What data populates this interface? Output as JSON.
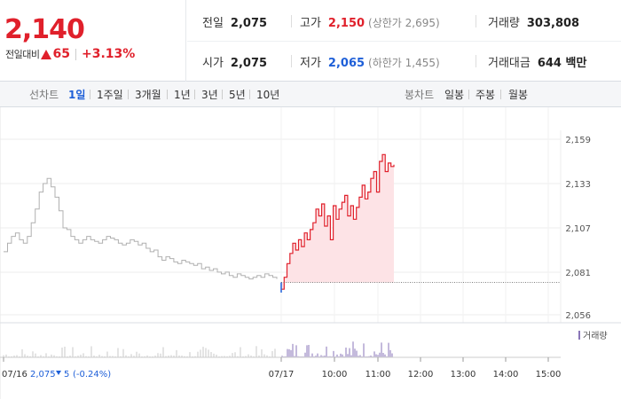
{
  "price": {
    "current": "2,140",
    "change_label": "전일대비",
    "change_amount": "65",
    "change_rate": "+3.13%",
    "direction": "up"
  },
  "stats": {
    "prev_close": {
      "label": "전일",
      "value": "2,075"
    },
    "open": {
      "label": "시가",
      "value": "2,075"
    },
    "high": {
      "label": "고가",
      "value": "2,150",
      "limit": "(상한가 2,695)"
    },
    "low": {
      "label": "저가",
      "value": "2,065",
      "limit": "(하한가 1,455)"
    },
    "volume": {
      "label": "거래량",
      "value": "303,808"
    },
    "trade_value": {
      "label": "거래대금",
      "value": "644 백만"
    }
  },
  "line_chart": {
    "label": "선차트",
    "periods": [
      "1일",
      "1주일",
      "3개월",
      "1년",
      "3년",
      "5년",
      "10년"
    ],
    "active": "1일"
  },
  "candle_chart": {
    "label": "봉차트",
    "periods": [
      "일봉",
      "주봉",
      "월봉"
    ]
  },
  "colors": {
    "up": "#e0202b",
    "down": "#1e5fd8",
    "prev_line": "#b0b0b0",
    "fill": "#fde3e6"
  },
  "chart_data": {
    "type": "line",
    "y_ticks": [
      "2,159",
      "2,133",
      "2,107",
      "2,081",
      "2,056"
    ],
    "ylim": [
      2056,
      2159
    ],
    "reference_price": 2075,
    "x_tick_labels": [
      "07/17",
      "10:00",
      "11:00",
      "12:00",
      "13:00",
      "14:00",
      "15:00"
    ],
    "prev_day_label": "07/16",
    "prev_day_close": "2,075",
    "prev_day_change": "5",
    "prev_day_rate": "(-0.24%)",
    "volume_legend": "거래량",
    "series": [
      {
        "values": [
          2093,
          2098,
          2102,
          2104,
          2100,
          2098,
          2102,
          2110,
          2118,
          2128,
          2133,
          2136,
          2131,
          2125,
          2117,
          2107,
          2106,
          2102,
          2100,
          2098,
          2100,
          2102,
          2100,
          2099,
          2098,
          2100,
          2102,
          2101,
          2100,
          2098,
          2097,
          2098,
          2100,
          2099,
          2097,
          2098,
          2095,
          2093,
          2094,
          2090,
          2088,
          2090,
          2089,
          2087,
          2086,
          2088,
          2087,
          2086,
          2085,
          2086,
          2083,
          2084,
          2082,
          2083,
          2081,
          2080,
          2081,
          2079,
          2078,
          2080,
          2079,
          2078,
          2077,
          2078,
          2079,
          2078,
          2080,
          2079,
          2078,
          2077
        ]
      },
      {
        "values": [
          2071,
          2078,
          2086,
          2092,
          2098,
          2094,
          2100,
          2096,
          2104,
          2100,
          2106,
          2110,
          2118,
          2114,
          2121,
          2108,
          2114,
          2100,
          2120,
          2112,
          2118,
          2122,
          2126,
          2114,
          2120,
          2112,
          2119,
          2125,
          2132,
          2124,
          2128,
          2136,
          2140,
          2128,
          2146,
          2150,
          2140,
          2145,
          2143,
          2144
        ]
      }
    ]
  }
}
